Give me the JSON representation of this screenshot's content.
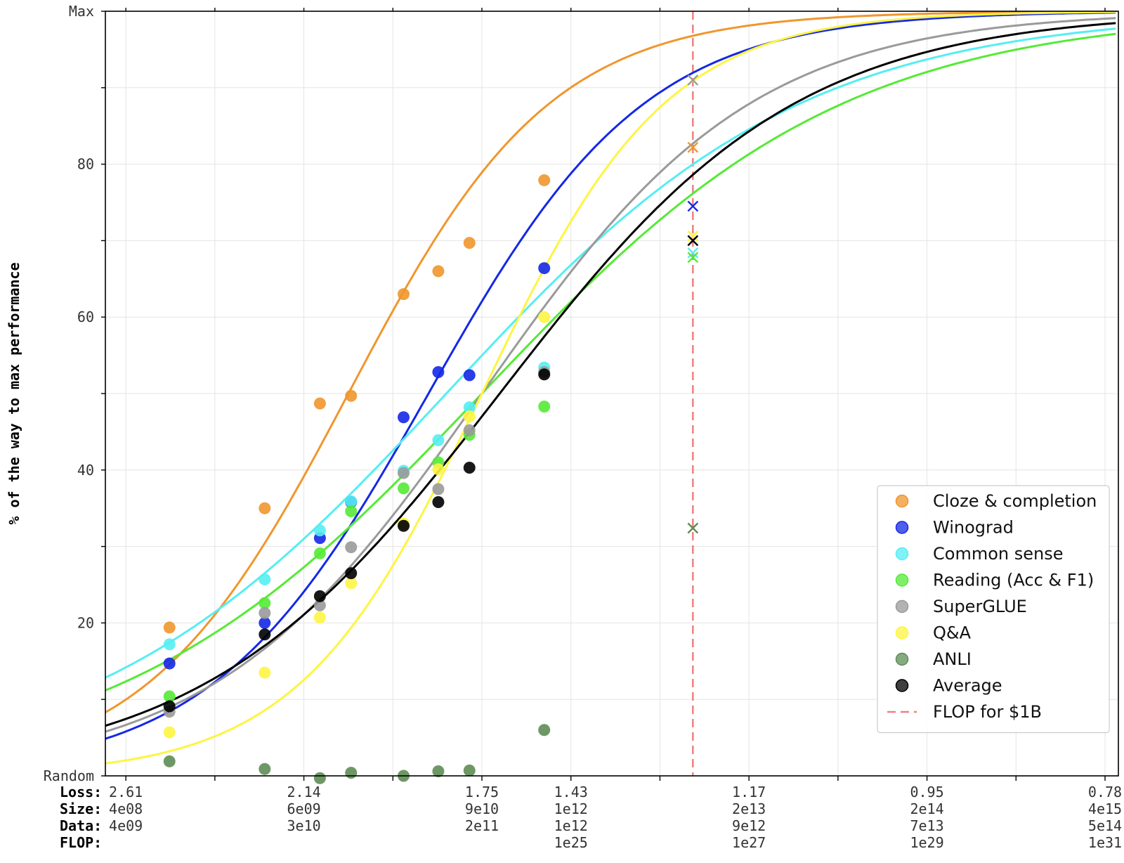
{
  "chart_data": {
    "type": "scatter",
    "ylabel": "% of the way to max performance",
    "y_ticks": [
      {
        "value": 0,
        "label": "Random"
      },
      {
        "value": 20,
        "label": "20"
      },
      {
        "value": 40,
        "label": "40"
      },
      {
        "value": 60,
        "label": "60"
      },
      {
        "value": 80,
        "label": "80"
      },
      {
        "value": 100,
        "label": "Max"
      }
    ],
    "ylim": [
      0,
      100
    ],
    "x_axis": {
      "description": "Loss, model size, data and training FLOP scale; x values are log10(FLOP)",
      "xlim": [
        19.77,
        31.15
      ],
      "row_labels": [
        "Loss:",
        "Size:",
        "Data:",
        "FLOP:"
      ],
      "labeled_ticks": [
        {
          "x": 20.0,
          "loss": "2.61",
          "size": "4e08",
          "data": "4e09",
          "flop": ""
        },
        {
          "x": 22.0,
          "loss": "2.14",
          "size": "6e09",
          "data": "3e10",
          "flop": ""
        },
        {
          "x": 24.0,
          "loss": "1.75",
          "size": "9e10",
          "data": "2e11",
          "flop": ""
        },
        {
          "x": 25.0,
          "loss": "1.43",
          "size": "1e12",
          "data": "1e12",
          "flop": "1e25"
        },
        {
          "x": 27.0,
          "loss": "1.17",
          "size": "2e13",
          "data": "9e12",
          "flop": "1e27"
        },
        {
          "x": 29.0,
          "loss": "0.95",
          "size": "2e14",
          "data": "7e13",
          "flop": "1e29"
        },
        {
          "x": 31.0,
          "loss": "0.78",
          "size": "4e15",
          "data": "5e14",
          "flop": "1e31"
        }
      ],
      "minor_ticks": [
        21.0,
        23.0,
        25.0,
        27.0,
        29.0
      ],
      "grid_x": [
        20.0,
        21.0,
        22.0,
        23.0,
        24.0,
        25.0,
        26.0,
        27.0,
        28.0,
        29.0,
        30.0,
        31.0
      ]
    },
    "grid": true,
    "legend_position": "lower right",
    "vline": {
      "x": 26.37,
      "label": "FLOP for $1B",
      "color": "#f08080",
      "style": "dashed"
    },
    "series": [
      {
        "name": "Cloze & completion",
        "color": "#f0962d",
        "points": [
          [
            20.49,
            19.4
          ],
          [
            21.56,
            35.0
          ],
          [
            22.18,
            48.7
          ],
          [
            22.53,
            49.7
          ],
          [
            23.12,
            63.0
          ],
          [
            23.51,
            66.0
          ],
          [
            23.86,
            69.7
          ],
          [
            24.7,
            77.9
          ]
        ],
        "x_marker": [
          26.37,
          82.2
        ],
        "curve": {
          "a": 0.88,
          "x0": 22.5
        }
      },
      {
        "name": "Winograd",
        "color": "#1428e6",
        "points": [
          [
            20.49,
            14.7
          ],
          [
            21.56,
            20.0
          ],
          [
            22.18,
            31.1
          ],
          [
            22.53,
            35.8
          ],
          [
            23.12,
            46.9
          ],
          [
            23.51,
            52.8
          ],
          [
            23.86,
            52.4
          ],
          [
            24.7,
            66.4
          ]
        ],
        "x_marker": [
          26.37,
          74.5
        ],
        "curve": {
          "a": 0.82,
          "x0": 23.4
        }
      },
      {
        "name": "Common sense",
        "color": "#55eef2",
        "points": [
          [
            20.49,
            17.2
          ],
          [
            21.56,
            25.7
          ],
          [
            22.18,
            32.1
          ],
          [
            22.53,
            35.9
          ],
          [
            23.12,
            39.9
          ],
          [
            23.51,
            43.9
          ],
          [
            23.86,
            48.2
          ],
          [
            24.7,
            53.4
          ]
        ],
        "x_marker": [
          26.37,
          68.4
        ],
        "curve": {
          "a": 0.5,
          "x0": 23.6
        }
      },
      {
        "name": "Reading (Acc & F1)",
        "color": "#55ea35",
        "points": [
          [
            20.49,
            10.4
          ],
          [
            21.56,
            22.6
          ],
          [
            22.18,
            29.1
          ],
          [
            22.53,
            34.6
          ],
          [
            23.12,
            37.6
          ],
          [
            23.51,
            41.0
          ],
          [
            23.86,
            44.6
          ],
          [
            24.7,
            48.3
          ]
        ],
        "x_marker": [
          26.37,
          67.8
        ],
        "curve": {
          "a": 0.49,
          "x0": 24.0
        }
      },
      {
        "name": "SuperGLUE",
        "color": "#9a9a9a",
        "points": [
          [
            20.49,
            8.4
          ],
          [
            21.56,
            21.3
          ],
          [
            22.18,
            22.3
          ],
          [
            22.53,
            29.9
          ],
          [
            23.12,
            39.6
          ],
          [
            23.51,
            37.5
          ],
          [
            23.86,
            45.2
          ],
          [
            24.7,
            52.8
          ]
        ],
        "x_marker": [
          26.37,
          91.0
        ],
        "curve": {
          "a": 0.66,
          "x0": 24.0
        }
      },
      {
        "name": "Q&A",
        "color": "#fdf542",
        "points": [
          [
            20.49,
            5.7
          ],
          [
            21.56,
            13.5
          ],
          [
            22.18,
            20.7
          ],
          [
            22.53,
            25.2
          ],
          [
            23.12,
            33.0
          ],
          [
            23.51,
            40.1
          ],
          [
            23.86,
            47.0
          ],
          [
            24.7,
            60.0
          ]
        ],
        "x_marker": [
          26.37,
          70.6
        ],
        "curve": {
          "a": 0.97,
          "x0": 24.0
        }
      },
      {
        "name": "ANLI",
        "color": "#5e8c55",
        "points": [
          [
            20.49,
            1.9
          ],
          [
            21.56,
            0.9
          ],
          [
            22.18,
            -0.3
          ],
          [
            22.53,
            0.4
          ],
          [
            23.12,
            0.0
          ],
          [
            23.51,
            0.6
          ],
          [
            23.86,
            0.7
          ],
          [
            24.7,
            6.0
          ]
        ],
        "x_marker": [
          26.37,
          32.4
        ],
        "curve": null
      },
      {
        "name": "Average",
        "color": "#000000",
        "points": [
          [
            20.49,
            9.1
          ],
          [
            21.56,
            18.5
          ],
          [
            22.18,
            23.5
          ],
          [
            22.53,
            26.5
          ],
          [
            23.12,
            32.7
          ],
          [
            23.51,
            35.8
          ],
          [
            23.86,
            40.3
          ],
          [
            24.7,
            52.5
          ]
        ],
        "x_marker": [
          26.37,
          70.0
        ],
        "curve": {
          "a": 0.6,
          "x0": 24.2
        }
      }
    ]
  }
}
